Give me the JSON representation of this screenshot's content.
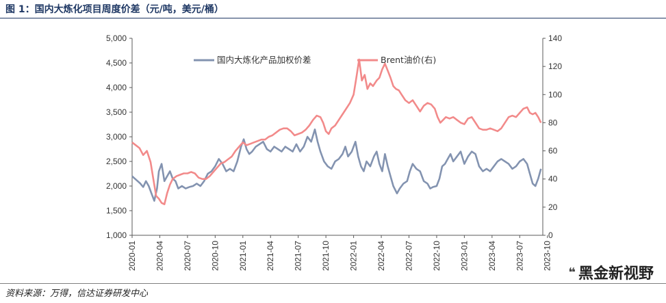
{
  "header": {
    "title": "图 1：国内大炼化项目周度价差（元/吨，美元/桶）"
  },
  "footer": {
    "source": "资料来源：万得，信达证券研发中心",
    "watermark": "黑金新视野",
    "watermark_icon": "chat-bubbles-icon"
  },
  "colors": {
    "spread": "#8393b0",
    "brent": "#f28a8a",
    "axis": "#595959",
    "title": "#1f3864"
  },
  "chart_data": {
    "type": "line",
    "title": "",
    "grid": false,
    "legend": "top-center",
    "y_left": {
      "range": [
        1000,
        5000
      ],
      "ticks": [
        "1,000",
        "1,500",
        "2,000",
        "2,500",
        "3,000",
        "3,500",
        "4,000",
        "4,500",
        "5,000"
      ]
    },
    "y_right": {
      "range": [
        0,
        140
      ],
      "ticks": [
        "0",
        "20",
        "40",
        "60",
        "80",
        "100",
        "120",
        "140"
      ]
    },
    "x": {
      "range": [
        "2020-01",
        "2023-11"
      ],
      "ticks": [
        "2020-01",
        "2020-04",
        "2020-07",
        "2020-10",
        "2021-01",
        "2021-04",
        "2021-07",
        "2021-10",
        "2022-01",
        "2022-04",
        "2022-07",
        "2022-10",
        "2023-01",
        "2023-04",
        "2023-07",
        "2023-10"
      ]
    },
    "series": [
      {
        "name": "国内大炼化产品加权价差",
        "axis": "left",
        "color": "#8393b0",
        "points": [
          [
            0,
            2200
          ],
          [
            0.3,
            2150
          ],
          [
            0.6,
            2100
          ],
          [
            0.9,
            2050
          ],
          [
            1.2,
            1980
          ],
          [
            1.5,
            2100
          ],
          [
            1.8,
            2000
          ],
          [
            2.1,
            1850
          ],
          [
            2.4,
            1700
          ],
          [
            2.7,
            1950
          ],
          [
            2.9,
            2300
          ],
          [
            3.2,
            2450
          ],
          [
            3.5,
            2100
          ],
          [
            3.8,
            2200
          ],
          [
            4.1,
            2300
          ],
          [
            4.4,
            2150
          ],
          [
            4.7,
            2100
          ],
          [
            5.0,
            1950
          ],
          [
            5.4,
            2000
          ],
          [
            5.8,
            1950
          ],
          [
            6.2,
            1980
          ],
          [
            6.6,
            2000
          ],
          [
            7.0,
            2050
          ],
          [
            7.4,
            2000
          ],
          [
            7.8,
            2100
          ],
          [
            8.2,
            2250
          ],
          [
            8.6,
            2300
          ],
          [
            9.0,
            2400
          ],
          [
            9.4,
            2550
          ],
          [
            9.8,
            2450
          ],
          [
            10.2,
            2300
          ],
          [
            10.6,
            2350
          ],
          [
            11.0,
            2300
          ],
          [
            11.4,
            2500
          ],
          [
            11.8,
            2800
          ],
          [
            12.1,
            2950
          ],
          [
            12.4,
            2750
          ],
          [
            12.7,
            2650
          ],
          [
            13.0,
            2700
          ],
          [
            13.4,
            2800
          ],
          [
            13.8,
            2850
          ],
          [
            14.2,
            2900
          ],
          [
            14.6,
            2750
          ],
          [
            15.0,
            2700
          ],
          [
            15.4,
            2800
          ],
          [
            15.8,
            2750
          ],
          [
            16.2,
            2700
          ],
          [
            16.6,
            2800
          ],
          [
            17.0,
            2750
          ],
          [
            17.4,
            2700
          ],
          [
            17.8,
            2850
          ],
          [
            18.2,
            2700
          ],
          [
            18.6,
            2800
          ],
          [
            19.0,
            3000
          ],
          [
            19.4,
            2900
          ],
          [
            19.8,
            3150
          ],
          [
            20.1,
            2900
          ],
          [
            20.4,
            2700
          ],
          [
            20.8,
            2500
          ],
          [
            21.2,
            2400
          ],
          [
            21.6,
            2350
          ],
          [
            22.0,
            2500
          ],
          [
            22.4,
            2550
          ],
          [
            22.8,
            2650
          ],
          [
            23.1,
            2800
          ],
          [
            23.4,
            2600
          ],
          [
            23.8,
            2700
          ],
          [
            24.2,
            2900
          ],
          [
            24.5,
            2600
          ],
          [
            24.8,
            2400
          ],
          [
            25.1,
            2300
          ],
          [
            25.4,
            2500
          ],
          [
            25.8,
            2400
          ],
          [
            26.2,
            2600
          ],
          [
            26.5,
            2700
          ],
          [
            26.8,
            2450
          ],
          [
            27.1,
            2300
          ],
          [
            27.4,
            2650
          ],
          [
            27.7,
            2400
          ],
          [
            28.0,
            2200
          ],
          [
            28.3,
            2000
          ],
          [
            28.7,
            1850
          ],
          [
            29.0,
            1950
          ],
          [
            29.4,
            2050
          ],
          [
            29.8,
            2100
          ],
          [
            30.1,
            2300
          ],
          [
            30.4,
            2450
          ],
          [
            30.8,
            2350
          ],
          [
            31.2,
            2300
          ],
          [
            31.6,
            2100
          ],
          [
            32.0,
            2050
          ],
          [
            32.3,
            1950
          ],
          [
            32.6,
            1980
          ],
          [
            33.0,
            2000
          ],
          [
            33.3,
            2150
          ],
          [
            33.6,
            2400
          ],
          [
            33.9,
            2450
          ],
          [
            34.2,
            2550
          ],
          [
            34.5,
            2650
          ],
          [
            34.8,
            2500
          ],
          [
            35.2,
            2600
          ],
          [
            35.6,
            2700
          ],
          [
            36.0,
            2450
          ],
          [
            36.4,
            2600
          ],
          [
            36.8,
            2700
          ],
          [
            37.2,
            2650
          ],
          [
            37.6,
            2400
          ],
          [
            38.0,
            2300
          ],
          [
            38.4,
            2350
          ],
          [
            38.8,
            2300
          ],
          [
            39.2,
            2400
          ],
          [
            39.6,
            2500
          ],
          [
            40.0,
            2550
          ],
          [
            40.4,
            2500
          ],
          [
            40.8,
            2450
          ],
          [
            41.2,
            2350
          ],
          [
            41.6,
            2400
          ],
          [
            42.0,
            2500
          ],
          [
            42.4,
            2550
          ],
          [
            42.8,
            2450
          ],
          [
            43.1,
            2250
          ],
          [
            43.4,
            2050
          ],
          [
            43.7,
            2000
          ],
          [
            44.0,
            2150
          ],
          [
            44.3,
            2350
          ]
        ]
      },
      {
        "name": "Brent油价(右)",
        "axis": "right",
        "color": "#f28a8a",
        "points": [
          [
            0,
            66
          ],
          [
            0.4,
            64
          ],
          [
            0.8,
            62
          ],
          [
            1.2,
            57
          ],
          [
            1.6,
            60
          ],
          [
            2.0,
            52
          ],
          [
            2.3,
            40
          ],
          [
            2.6,
            28
          ],
          [
            2.9,
            26
          ],
          [
            3.2,
            23
          ],
          [
            3.5,
            22
          ],
          [
            3.8,
            30
          ],
          [
            4.1,
            36
          ],
          [
            4.4,
            40
          ],
          [
            4.8,
            42
          ],
          [
            5.2,
            43
          ],
          [
            5.6,
            44
          ],
          [
            6.0,
            44
          ],
          [
            6.4,
            45
          ],
          [
            6.8,
            44
          ],
          [
            7.2,
            41
          ],
          [
            7.6,
            40
          ],
          [
            8.0,
            40
          ],
          [
            8.4,
            42
          ],
          [
            8.8,
            45
          ],
          [
            9.2,
            48
          ],
          [
            9.6,
            51
          ],
          [
            10.0,
            52
          ],
          [
            10.4,
            54
          ],
          [
            10.8,
            56
          ],
          [
            11.2,
            60
          ],
          [
            11.6,
            63
          ],
          [
            12.0,
            66
          ],
          [
            12.4,
            64
          ],
          [
            12.8,
            65
          ],
          [
            13.2,
            66
          ],
          [
            13.6,
            67
          ],
          [
            14.0,
            68
          ],
          [
            14.4,
            68
          ],
          [
            14.8,
            70
          ],
          [
            15.2,
            71
          ],
          [
            15.6,
            73
          ],
          [
            16.0,
            75
          ],
          [
            16.4,
            76
          ],
          [
            16.8,
            76
          ],
          [
            17.2,
            74
          ],
          [
            17.6,
            71
          ],
          [
            18.0,
            72
          ],
          [
            18.4,
            73
          ],
          [
            18.8,
            75
          ],
          [
            19.2,
            78
          ],
          [
            19.6,
            82
          ],
          [
            20.0,
            85
          ],
          [
            20.4,
            84
          ],
          [
            20.7,
            80
          ],
          [
            21.0,
            74
          ],
          [
            21.3,
            72
          ],
          [
            21.6,
            76
          ],
          [
            22.0,
            78
          ],
          [
            22.4,
            82
          ],
          [
            22.8,
            86
          ],
          [
            23.2,
            90
          ],
          [
            23.6,
            94
          ],
          [
            24.0,
            100
          ],
          [
            24.3,
            112
          ],
          [
            24.6,
            125
          ],
          [
            24.9,
            110
          ],
          [
            25.2,
            114
          ],
          [
            25.5,
            104
          ],
          [
            25.8,
            108
          ],
          [
            26.1,
            106
          ],
          [
            26.5,
            110
          ],
          [
            26.8,
            112
          ],
          [
            27.1,
            118
          ],
          [
            27.4,
            122
          ],
          [
            27.7,
            117
          ],
          [
            28.0,
            112
          ],
          [
            28.3,
            106
          ],
          [
            28.6,
            104
          ],
          [
            28.9,
            103
          ],
          [
            29.2,
            100
          ],
          [
            29.6,
            96
          ],
          [
            30.0,
            94
          ],
          [
            30.4,
            96
          ],
          [
            30.8,
            92
          ],
          [
            31.2,
            88
          ],
          [
            31.6,
            92
          ],
          [
            32.0,
            94
          ],
          [
            32.4,
            93
          ],
          [
            32.8,
            90
          ],
          [
            33.1,
            84
          ],
          [
            33.4,
            80
          ],
          [
            33.7,
            82
          ],
          [
            34.0,
            84
          ],
          [
            34.4,
            83
          ],
          [
            34.8,
            84
          ],
          [
            35.2,
            82
          ],
          [
            35.6,
            80
          ],
          [
            36.0,
            79
          ],
          [
            36.4,
            83
          ],
          [
            36.8,
            84
          ],
          [
            37.2,
            80
          ],
          [
            37.6,
            76
          ],
          [
            38.0,
            75
          ],
          [
            38.4,
            75
          ],
          [
            38.8,
            76
          ],
          [
            39.2,
            75
          ],
          [
            39.6,
            74
          ],
          [
            40.0,
            76
          ],
          [
            40.4,
            80
          ],
          [
            40.8,
            84
          ],
          [
            41.2,
            85
          ],
          [
            41.6,
            84
          ],
          [
            42.0,
            87
          ],
          [
            42.4,
            90
          ],
          [
            42.8,
            91
          ],
          [
            43.1,
            87
          ],
          [
            43.4,
            86
          ],
          [
            43.7,
            87
          ],
          [
            44.0,
            84
          ],
          [
            44.3,
            80
          ]
        ]
      }
    ]
  }
}
